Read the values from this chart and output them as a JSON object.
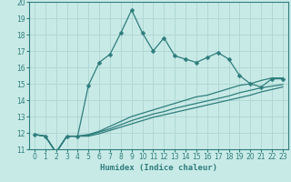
{
  "title": "",
  "xlabel": "Humidex (Indice chaleur)",
  "ylabel": "",
  "bg_color": "#c8eae6",
  "grid_color": "#b0d8d4",
  "line_color": "#2e7d7d",
  "xlim": [
    -0.5,
    23.5
  ],
  "ylim": [
    11,
    20
  ],
  "yticks": [
    11,
    12,
    13,
    14,
    15,
    16,
    17,
    18,
    19,
    20
  ],
  "xticks": [
    0,
    1,
    2,
    3,
    4,
    5,
    6,
    7,
    8,
    9,
    10,
    11,
    12,
    13,
    14,
    15,
    16,
    17,
    18,
    19,
    20,
    21,
    22,
    23
  ],
  "series1_x": [
    0,
    1,
    2,
    3,
    4,
    5,
    6,
    7,
    8,
    9,
    10,
    11,
    12,
    13,
    14,
    15,
    16,
    17,
    18,
    19,
    20,
    21,
    22,
    23
  ],
  "series1_y": [
    11.9,
    11.8,
    10.8,
    11.8,
    11.8,
    14.9,
    16.3,
    16.8,
    18.1,
    19.5,
    18.1,
    17.0,
    17.8,
    16.7,
    16.5,
    16.3,
    16.6,
    16.9,
    16.5,
    15.5,
    15.0,
    14.8,
    15.3,
    15.3
  ],
  "series2_x": [
    0,
    1,
    2,
    3,
    4,
    5,
    6,
    7,
    8,
    9,
    10,
    11,
    12,
    13,
    14,
    15,
    16,
    17,
    18,
    19,
    20,
    21,
    22,
    23
  ],
  "series2_y": [
    11.9,
    11.8,
    10.8,
    11.8,
    11.8,
    11.9,
    12.1,
    12.4,
    12.7,
    13.0,
    13.2,
    13.4,
    13.6,
    13.8,
    14.0,
    14.2,
    14.3,
    14.5,
    14.7,
    14.9,
    15.0,
    15.2,
    15.35,
    15.35
  ],
  "series3_x": [
    0,
    1,
    2,
    3,
    4,
    5,
    6,
    7,
    8,
    9,
    10,
    11,
    12,
    13,
    14,
    15,
    16,
    17,
    18,
    19,
    20,
    21,
    22,
    23
  ],
  "series3_y": [
    11.9,
    11.8,
    10.8,
    11.8,
    11.8,
    11.85,
    12.05,
    12.25,
    12.5,
    12.75,
    12.95,
    13.15,
    13.3,
    13.5,
    13.65,
    13.8,
    13.95,
    14.1,
    14.25,
    14.45,
    14.6,
    14.75,
    14.85,
    14.95
  ],
  "series4_x": [
    0,
    1,
    2,
    3,
    4,
    5,
    6,
    7,
    8,
    9,
    10,
    11,
    12,
    13,
    14,
    15,
    16,
    17,
    18,
    19,
    20,
    21,
    22,
    23
  ],
  "series4_y": [
    11.9,
    11.8,
    10.8,
    11.8,
    11.8,
    11.8,
    11.95,
    12.15,
    12.35,
    12.55,
    12.75,
    12.95,
    13.1,
    13.25,
    13.4,
    13.55,
    13.7,
    13.85,
    14.0,
    14.15,
    14.3,
    14.5,
    14.65,
    14.8
  ]
}
